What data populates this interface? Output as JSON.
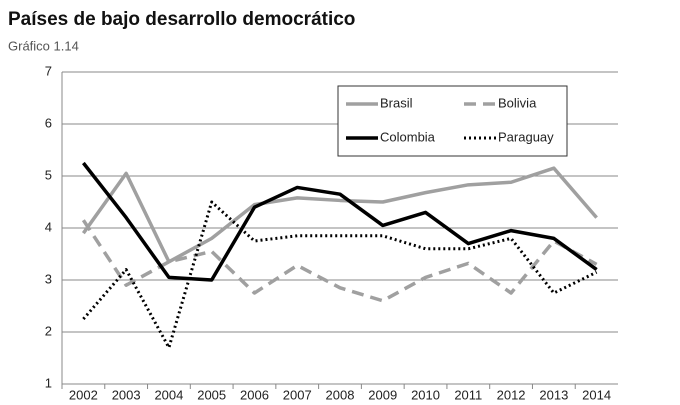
{
  "chart_data": {
    "type": "line",
    "title": "Países de bajo desarrollo democrático",
    "subtitle": "Gráfico 1.14",
    "categories": [
      "2002",
      "2003",
      "2004",
      "2005",
      "2006",
      "2007",
      "2008",
      "2009",
      "2010",
      "2011",
      "2012",
      "2013",
      "2014"
    ],
    "series": [
      {
        "name": "Brasil",
        "color": "#a0a0a0",
        "dash": "solid",
        "values": [
          3.9,
          5.05,
          3.35,
          3.8,
          4.45,
          4.58,
          4.53,
          4.5,
          4.68,
          4.83,
          4.88,
          5.15,
          4.2
        ]
      },
      {
        "name": "Bolivia",
        "color": "#a0a0a0",
        "dash": "dashed",
        "values": [
          4.15,
          2.9,
          3.35,
          3.55,
          2.75,
          3.28,
          2.85,
          2.6,
          3.05,
          3.32,
          2.75,
          3.75,
          3.3
        ]
      },
      {
        "name": "Colombia",
        "color": "#000000",
        "dash": "solid",
        "values": [
          5.25,
          4.2,
          3.05,
          3.0,
          4.4,
          4.78,
          4.65,
          4.05,
          4.3,
          3.7,
          3.95,
          3.8,
          3.2
        ]
      },
      {
        "name": "Paraguay",
        "color": "#000000",
        "dash": "dotted",
        "values": [
          2.25,
          3.2,
          1.7,
          4.5,
          3.75,
          3.85,
          3.85,
          3.85,
          3.6,
          3.6,
          3.8,
          2.75,
          3.15
        ]
      }
    ],
    "ylim": [
      1,
      7
    ],
    "yticks": [
      1,
      2,
      3,
      4,
      5,
      6,
      7
    ],
    "grid": true,
    "legend": "top-right"
  }
}
